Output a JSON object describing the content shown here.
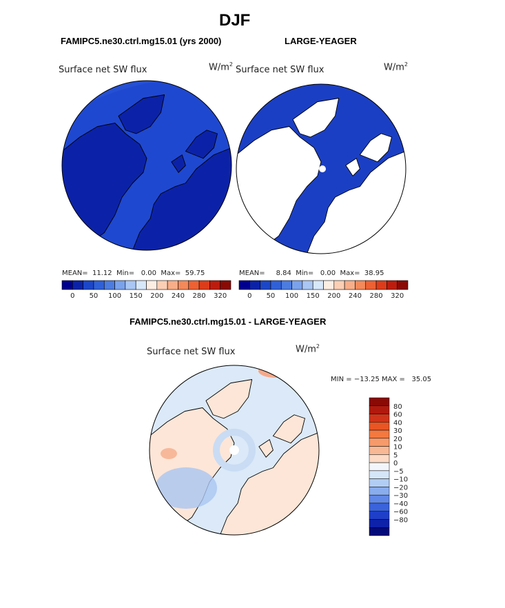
{
  "page": {
    "season": "DJF",
    "case1": "FAMIPC5.ne30.ctrl.mg15.01 (yrs 2000)",
    "case2": "LARGE-YEAGER",
    "diff_title": "FAMIPC5.ne30.ctrl.mg15.01 - LARGE-YEAGER"
  },
  "chart_data": [
    {
      "type": "heatmap",
      "projection": "north polar stereographic",
      "title": "Surface net SW flux",
      "units": "W/m",
      "units_superscript": "2",
      "stats": {
        "mean_label": "MEAN=",
        "mean": "11.12",
        "min_label": "Min=",
        "min": "0.00",
        "max_label": "Max=",
        "max": "59.75"
      },
      "colorbar": {
        "levels": [
          0,
          25,
          50,
          75,
          100,
          125,
          150,
          175,
          200,
          220,
          240,
          260,
          280,
          300,
          320
        ],
        "tick_labels": [
          "0",
          "50",
          "100",
          "150",
          "200",
          "240",
          "280",
          "320"
        ],
        "colors": [
          "#00008f",
          "#0b22a8",
          "#1c46c8",
          "#3060d8",
          "#4d7ce0",
          "#7aa2ec",
          "#a9c6f4",
          "#d8e8fb",
          "#fdeee4",
          "#fbcfb4",
          "#f8ae88",
          "#f4895a",
          "#ed6133",
          "#dd3c1a",
          "#bc1c0e",
          "#8a0a05"
        ]
      },
      "field": {
        "ocean_value_range": [
          25,
          50
        ],
        "land_value_range": [
          0,
          25
        ]
      }
    },
    {
      "type": "heatmap",
      "projection": "north polar stereographic",
      "title": "Surface net SW flux",
      "units": "W/m",
      "units_superscript": "2",
      "stats": {
        "mean_label": "MEAN=",
        "mean": "8.84",
        "min_label": "Min=",
        "min": "0.00",
        "max_label": "Max=",
        "max": "38.95"
      },
      "colorbar": {
        "levels": [
          0,
          25,
          50,
          75,
          100,
          125,
          150,
          175,
          200,
          220,
          240,
          260,
          280,
          300,
          320
        ],
        "tick_labels": [
          "0",
          "50",
          "100",
          "150",
          "200",
          "240",
          "280",
          "320"
        ]
      },
      "field": {
        "ocean_value_range": [
          0,
          25
        ],
        "land": "missing"
      }
    },
    {
      "type": "heatmap",
      "projection": "north polar stereographic",
      "title": "Surface net SW flux",
      "units": "W/m",
      "units_superscript": "2",
      "stats": {
        "min_label": "MIN =",
        "min": "−13.25",
        "max_label": "MAX =",
        "max": "35.05"
      },
      "colorbar": {
        "levels": [
          -80,
          -60,
          -40,
          -30,
          -20,
          -10,
          -5,
          0,
          5,
          10,
          20,
          30,
          40,
          60,
          80
        ],
        "tick_labels": [
          "80",
          "60",
          "40",
          "30",
          "20",
          "10",
          "5",
          "0",
          "−5",
          "−10",
          "−20",
          "−30",
          "−40",
          "−60",
          "−80"
        ],
        "colors": [
          "#8a0a05",
          "#b01a0e",
          "#d0341a",
          "#ea5524",
          "#f3793f",
          "#f69a6b",
          "#f8b895",
          "#fcdac5",
          "#f2f5fb",
          "#d5e6f8",
          "#b2cdf3",
          "#8aadee",
          "#6088e6",
          "#3a63dc",
          "#1f3fc8",
          "#0d22a8",
          "#030a7a"
        ]
      },
      "field": {
        "ocean_value_range": [
          -5,
          0
        ],
        "land_value_range": [
          0,
          5
        ]
      }
    }
  ]
}
